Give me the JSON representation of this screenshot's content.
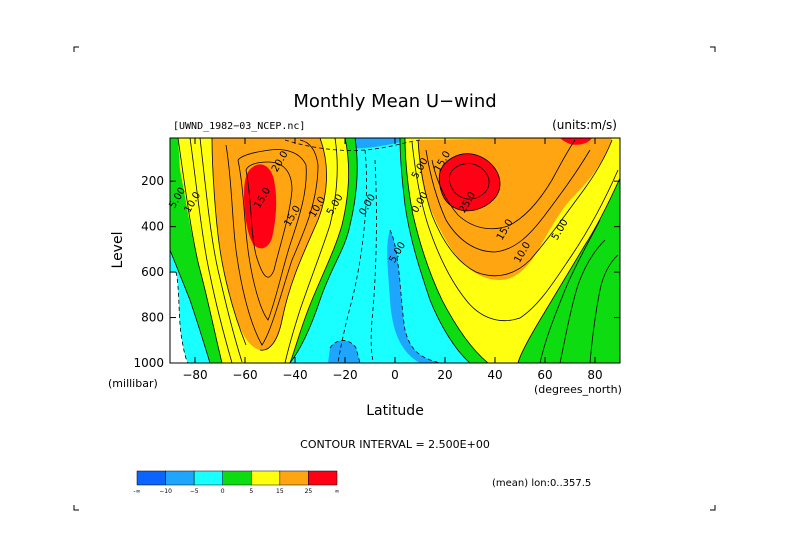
{
  "chart_data": {
    "type": "contour",
    "title": "Monthly Mean U−wind",
    "dataset_label": "[UWND_1982−03_NCEP.nc]",
    "units_label": "(units:m/s)",
    "xlabel": "Latitude",
    "x_units": "(degrees_north)",
    "ylabel": "Level",
    "y_units": "(millibar)",
    "xlim": [
      -90,
      90
    ],
    "ylim": [
      1000,
      10
    ],
    "x_ticks": [
      -80,
      -60,
      -40,
      -20,
      0,
      20,
      40,
      60,
      80
    ],
    "x_tick_labels": [
      "−80",
      "−60",
      "−40",
      "−20",
      "0",
      "20",
      "40",
      "60",
      "80"
    ],
    "y_ticks": [
      200,
      400,
      600,
      800,
      1000
    ],
    "y_tick_labels": [
      "200",
      "400",
      "600",
      "800",
      "1000"
    ],
    "contour_interval_text": "CONTOUR INTERVAL = 2.500E+00",
    "mean_note": "(mean) lon:0..357.5",
    "contour_labels": [
      {
        "text": "20.0",
        "x": -45,
        "y": 120
      },
      {
        "text": "15.0",
        "x": -52,
        "y": 280
      },
      {
        "text": "15.0",
        "x": -40,
        "y": 360
      },
      {
        "text": "10.0",
        "x": -80,
        "y": 300
      },
      {
        "text": "10.0",
        "x": -30,
        "y": 320
      },
      {
        "text": "5.00",
        "x": -86,
        "y": 280
      },
      {
        "text": "5.00",
        "x": -23,
        "y": 310
      },
      {
        "text": "0.00",
        "x": -10,
        "y": 310
      },
      {
        "text": "5.00",
        "x": 2,
        "y": 520
      },
      {
        "text": "0.00",
        "x": 11,
        "y": 300
      },
      {
        "text": "5.00",
        "x": 11,
        "y": 150
      },
      {
        "text": "15.0",
        "x": 20,
        "y": 120
      },
      {
        "text": "25.0",
        "x": 30,
        "y": 300
      },
      {
        "text": "15.0",
        "x": 45,
        "y": 420
      },
      {
        "text": "10.0",
        "x": 52,
        "y": 520
      },
      {
        "text": "5.00",
        "x": 67,
        "y": 420
      }
    ],
    "colorbar": {
      "colors": [
        "#0a64ff",
        "#1ea6ff",
        "#19ffff",
        "#0cdc10",
        "#ffff10",
        "#ffa512",
        "#ff0014"
      ],
      "labels": [
        "-∞",
        "−10",
        "−5",
        "0",
        "5",
        "15",
        "25",
        "∞"
      ]
    }
  }
}
